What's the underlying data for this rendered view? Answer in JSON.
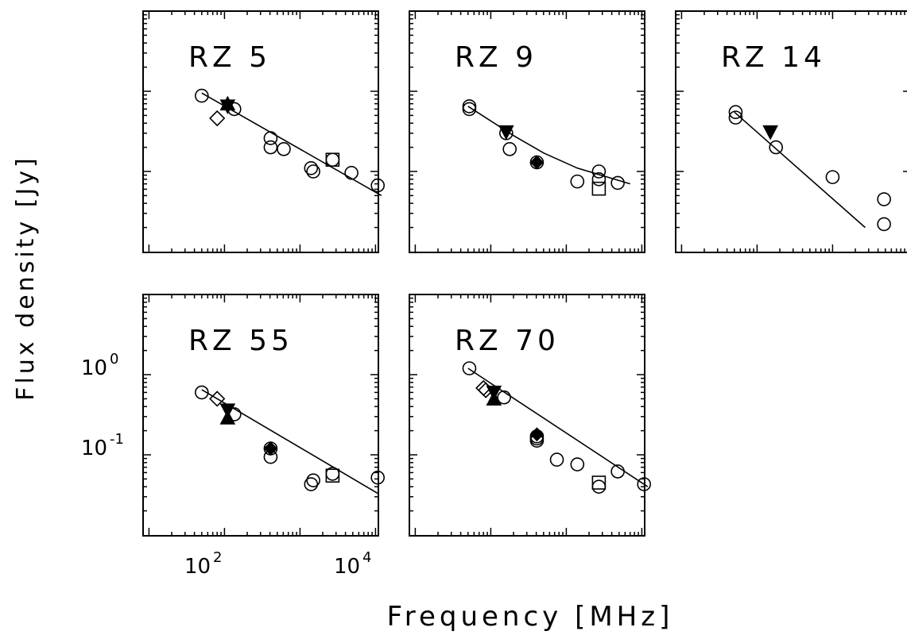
{
  "figure": {
    "ylabel": "Flux density [Jy]",
    "xlabel": "Frequency [MHz]",
    "xtick_labels": [
      {
        "base": "10",
        "exp": "2",
        "value": 100
      },
      {
        "base": "10",
        "exp": "4",
        "value": 10000
      }
    ],
    "ytick_labels": [
      {
        "base": "10",
        "exp": "0",
        "value": 1
      },
      {
        "base": "10",
        "exp": "-1",
        "value": 0.1
      }
    ]
  },
  "chart_data": [
    {
      "type": "scatter",
      "title": "RZ 5",
      "xscale": "log",
      "yscale": "log",
      "xlim": [
        20,
        30000
      ],
      "ylim": [
        0.01,
        10
      ],
      "fit": [
        [
          50,
          0.95
        ],
        [
          12000,
          0.05
        ]
      ],
      "points": [
        {
          "x": 50,
          "y": 0.88,
          "marker": "circle"
        },
        {
          "x": 80,
          "y": 0.46,
          "marker": "diamond"
        },
        {
          "x": 110,
          "y": 0.65,
          "marker": "tri-down"
        },
        {
          "x": 110,
          "y": 0.7,
          "marker": "tri-up"
        },
        {
          "x": 135,
          "y": 0.6,
          "marker": "circle"
        },
        {
          "x": 408,
          "y": 0.26,
          "marker": "circle"
        },
        {
          "x": 408,
          "y": 0.2,
          "marker": "circle"
        },
        {
          "x": 610,
          "y": 0.19,
          "marker": "circle"
        },
        {
          "x": 1400,
          "y": 0.11,
          "marker": "circle"
        },
        {
          "x": 1500,
          "y": 0.1,
          "marker": "circle"
        },
        {
          "x": 2700,
          "y": 0.14,
          "marker": "circle"
        },
        {
          "x": 2700,
          "y": 0.14,
          "marker": "square"
        },
        {
          "x": 4800,
          "y": 0.096,
          "marker": "circle"
        },
        {
          "x": 10700,
          "y": 0.067,
          "marker": "circle"
        }
      ]
    },
    {
      "type": "scatter",
      "title": "RZ 9",
      "xscale": "log",
      "yscale": "log",
      "xlim": [
        20,
        30000
      ],
      "ylim": [
        0.01,
        10
      ],
      "fit": [
        [
          50,
          0.65
        ],
        [
          200,
          0.28
        ],
        [
          500,
          0.17
        ],
        [
          1400,
          0.11
        ],
        [
          7000,
          0.07
        ]
      ],
      "points": [
        {
          "x": 52,
          "y": 0.6,
          "marker": "circle"
        },
        {
          "x": 52,
          "y": 0.65,
          "marker": "circle"
        },
        {
          "x": 160,
          "y": 0.3,
          "marker": "circle"
        },
        {
          "x": 160,
          "y": 0.31,
          "marker": "tri-down"
        },
        {
          "x": 178,
          "y": 0.19,
          "marker": "circle"
        },
        {
          "x": 408,
          "y": 0.13,
          "marker": "circle"
        },
        {
          "x": 408,
          "y": 0.13,
          "marker": "diamond-filled"
        },
        {
          "x": 2700,
          "y": 0.08,
          "marker": "circle"
        },
        {
          "x": 2700,
          "y": 0.061,
          "marker": "square"
        },
        {
          "x": 2700,
          "y": 0.1,
          "marker": "circle"
        },
        {
          "x": 1400,
          "y": 0.075,
          "marker": "circle"
        },
        {
          "x": 4800,
          "y": 0.072,
          "marker": "circle"
        }
      ]
    },
    {
      "type": "scatter",
      "title": "RZ 14",
      "xscale": "log",
      "yscale": "log",
      "xlim": [
        20,
        30000
      ],
      "ylim": [
        0.01,
        10
      ],
      "fit": [
        [
          50,
          0.55
        ],
        [
          2700,
          0.02
        ]
      ],
      "points": [
        {
          "x": 52,
          "y": 0.55,
          "marker": "circle"
        },
        {
          "x": 52,
          "y": 0.47,
          "marker": "circle"
        },
        {
          "x": 150,
          "y": 0.31,
          "marker": "tri-down"
        },
        {
          "x": 178,
          "y": 0.2,
          "marker": "circle"
        },
        {
          "x": 1000,
          "y": 0.085,
          "marker": "circle"
        },
        {
          "x": 4800,
          "y": 0.045,
          "marker": "circle"
        },
        {
          "x": 4800,
          "y": 0.022,
          "marker": "circle"
        }
      ]
    },
    {
      "type": "scatter",
      "title": "RZ 55",
      "xscale": "log",
      "yscale": "log",
      "xlim": [
        20,
        30000
      ],
      "ylim": [
        0.01,
        10
      ],
      "fit": [
        [
          50,
          0.65
        ],
        [
          10700,
          0.033
        ]
      ],
      "points": [
        {
          "x": 50,
          "y": 0.6,
          "marker": "circle"
        },
        {
          "x": 80,
          "y": 0.5,
          "marker": "diamond"
        },
        {
          "x": 110,
          "y": 0.36,
          "marker": "tri-down"
        },
        {
          "x": 110,
          "y": 0.29,
          "marker": "tri-up"
        },
        {
          "x": 135,
          "y": 0.32,
          "marker": "circle"
        },
        {
          "x": 408,
          "y": 0.12,
          "marker": "circle"
        },
        {
          "x": 408,
          "y": 0.12,
          "marker": "diamond-filled"
        },
        {
          "x": 408,
          "y": 0.094,
          "marker": "circle"
        },
        {
          "x": 1400,
          "y": 0.043,
          "marker": "circle"
        },
        {
          "x": 1500,
          "y": 0.048,
          "marker": "circle"
        },
        {
          "x": 2700,
          "y": 0.055,
          "marker": "square"
        },
        {
          "x": 2700,
          "y": 0.058,
          "marker": "circle"
        },
        {
          "x": 10700,
          "y": 0.052,
          "marker": "circle"
        }
      ]
    },
    {
      "type": "scatter",
      "title": "RZ 70",
      "xscale": "log",
      "yscale": "log",
      "xlim": [
        20,
        30000
      ],
      "ylim": [
        0.01,
        10
      ],
      "fit": [
        [
          50,
          1.2
        ],
        [
          12000,
          0.04
        ]
      ],
      "points": [
        {
          "x": 52,
          "y": 1.2,
          "marker": "circle"
        },
        {
          "x": 80,
          "y": 0.68,
          "marker": "diamond"
        },
        {
          "x": 86,
          "y": 0.64,
          "marker": "diamond"
        },
        {
          "x": 110,
          "y": 0.6,
          "marker": "tri-down"
        },
        {
          "x": 110,
          "y": 0.5,
          "marker": "tri-up"
        },
        {
          "x": 150,
          "y": 0.52,
          "marker": "circle"
        },
        {
          "x": 408,
          "y": 0.17,
          "marker": "circle"
        },
        {
          "x": 408,
          "y": 0.16,
          "marker": "circle"
        },
        {
          "x": 408,
          "y": 0.15,
          "marker": "circle"
        },
        {
          "x": 408,
          "y": 0.18,
          "marker": "diamond-filled"
        },
        {
          "x": 750,
          "y": 0.087,
          "marker": "circle"
        },
        {
          "x": 1400,
          "y": 0.076,
          "marker": "circle"
        },
        {
          "x": 2700,
          "y": 0.045,
          "marker": "square"
        },
        {
          "x": 2700,
          "y": 0.04,
          "marker": "circle"
        },
        {
          "x": 4800,
          "y": 0.062,
          "marker": "circle"
        },
        {
          "x": 10700,
          "y": 0.043,
          "marker": "circle"
        }
      ]
    }
  ]
}
